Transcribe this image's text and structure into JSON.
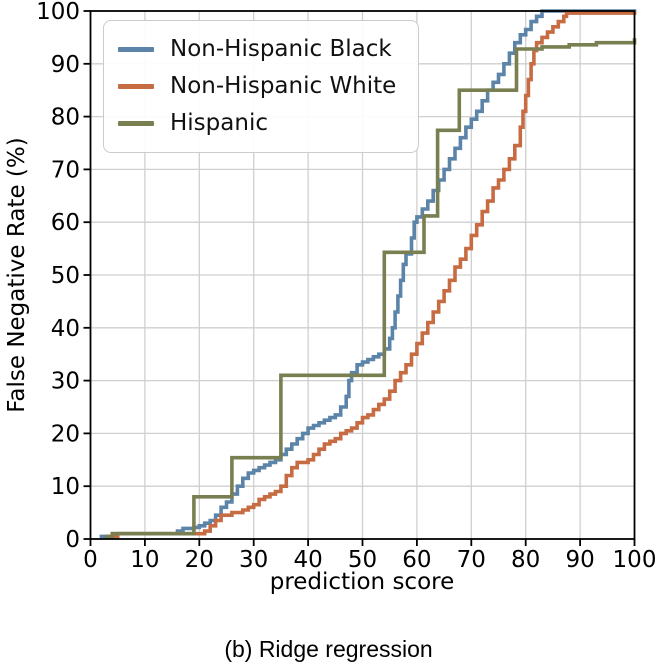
{
  "caption": "(b) Ridge regression",
  "chart_data": {
    "type": "line",
    "line_style": "steps-post",
    "title": "",
    "xlabel": "prediction score",
    "ylabel": "False Negative Rate (%)",
    "xlim": [
      0,
      100
    ],
    "ylim": [
      0,
      100
    ],
    "xticks": [
      0,
      10,
      20,
      30,
      40,
      50,
      60,
      70,
      80,
      90,
      100
    ],
    "yticks": [
      0,
      10,
      20,
      30,
      40,
      50,
      60,
      70,
      80,
      90,
      100
    ],
    "grid": true,
    "grid_color": "#cfcfcf",
    "legend_position": "upper-left",
    "series": [
      {
        "name": "Non-Hispanic Black",
        "color": "#5B84A8",
        "points": [
          [
            2,
            0.5
          ],
          [
            4,
            1
          ],
          [
            15,
            1
          ],
          [
            16,
            1.5
          ],
          [
            17,
            2
          ],
          [
            19,
            2.2
          ],
          [
            20,
            2.5
          ],
          [
            21,
            3
          ],
          [
            22,
            3.5
          ],
          [
            23,
            4.5
          ],
          [
            24,
            6
          ],
          [
            25,
            7
          ],
          [
            26,
            8.5
          ],
          [
            27,
            10
          ],
          [
            28,
            11.5
          ],
          [
            29,
            12.5
          ],
          [
            30,
            13
          ],
          [
            31,
            13.5
          ],
          [
            32,
            14
          ],
          [
            33,
            14.5
          ],
          [
            34,
            15
          ],
          [
            35,
            16
          ],
          [
            36,
            17
          ],
          [
            37,
            18
          ],
          [
            38,
            19
          ],
          [
            39,
            20
          ],
          [
            40,
            21
          ],
          [
            41,
            21.5
          ],
          [
            42,
            22
          ],
          [
            43,
            22.5
          ],
          [
            44,
            23
          ],
          [
            45,
            23.5
          ],
          [
            46,
            25
          ],
          [
            47,
            27
          ],
          [
            47.5,
            30
          ],
          [
            48,
            31.5
          ],
          [
            49,
            33
          ],
          [
            50,
            33.5
          ],
          [
            51,
            34
          ],
          [
            52,
            34.5
          ],
          [
            53,
            35
          ],
          [
            54,
            36
          ],
          [
            55,
            38
          ],
          [
            55.5,
            40
          ],
          [
            56,
            43
          ],
          [
            56.5,
            46
          ],
          [
            57,
            49
          ],
          [
            57.5,
            52
          ],
          [
            58,
            54
          ],
          [
            59,
            57
          ],
          [
            59.5,
            60
          ],
          [
            60,
            61
          ],
          [
            61,
            62.5
          ],
          [
            62,
            64
          ],
          [
            63,
            66
          ],
          [
            64,
            68
          ],
          [
            65,
            70
          ],
          [
            66,
            72
          ],
          [
            67,
            74
          ],
          [
            68,
            76
          ],
          [
            69,
            78
          ],
          [
            70,
            79.5
          ],
          [
            71,
            81
          ],
          [
            72,
            83
          ],
          [
            73,
            85
          ],
          [
            74,
            86.5
          ],
          [
            75,
            88
          ],
          [
            76,
            90
          ],
          [
            77,
            92
          ],
          [
            78,
            94
          ],
          [
            79,
            95.5
          ],
          [
            80,
            96.5
          ],
          [
            81,
            98
          ],
          [
            82,
            99
          ],
          [
            83,
            100
          ],
          [
            100,
            100
          ]
        ]
      },
      {
        "name": "Non-Hispanic White",
        "color": "#C76B43",
        "points": [
          [
            3,
            0.5
          ],
          [
            5,
            1
          ],
          [
            20,
            1
          ],
          [
            21,
            1.5
          ],
          [
            22,
            2.5
          ],
          [
            23,
            3.5
          ],
          [
            24,
            4.5
          ],
          [
            26,
            5
          ],
          [
            28,
            5.5
          ],
          [
            29,
            6
          ],
          [
            30,
            6.5
          ],
          [
            31,
            7.5
          ],
          [
            32,
            8
          ],
          [
            33,
            8.5
          ],
          [
            34,
            9
          ],
          [
            35,
            10
          ],
          [
            36,
            12
          ],
          [
            37,
            13.5
          ],
          [
            38,
            14.5
          ],
          [
            40,
            15
          ],
          [
            41,
            16
          ],
          [
            42,
            17
          ],
          [
            43,
            18
          ],
          [
            44,
            18.5
          ],
          [
            45,
            19
          ],
          [
            46,
            20
          ],
          [
            47,
            20.5
          ],
          [
            48,
            21
          ],
          [
            49,
            22
          ],
          [
            50,
            23
          ],
          [
            51,
            23.5
          ],
          [
            52,
            24.5
          ],
          [
            53,
            25.5
          ],
          [
            54,
            26.5
          ],
          [
            55,
            28
          ],
          [
            56,
            30
          ],
          [
            57,
            31.5
          ],
          [
            58,
            33
          ],
          [
            59,
            35
          ],
          [
            60,
            37
          ],
          [
            61,
            39
          ],
          [
            62,
            41
          ],
          [
            63,
            43
          ],
          [
            64,
            45
          ],
          [
            65,
            47
          ],
          [
            66,
            49
          ],
          [
            67,
            51.5
          ],
          [
            68,
            53
          ],
          [
            69,
            55
          ],
          [
            70,
            57.5
          ],
          [
            71,
            59.5
          ],
          [
            72,
            62
          ],
          [
            73,
            64
          ],
          [
            74,
            66.5
          ],
          [
            75,
            68
          ],
          [
            76,
            70
          ],
          [
            77,
            72
          ],
          [
            78,
            74.5
          ],
          [
            79,
            78
          ],
          [
            79.5,
            81
          ],
          [
            80,
            84
          ],
          [
            80.5,
            87
          ],
          [
            81,
            90
          ],
          [
            81.5,
            92.5
          ],
          [
            82,
            94
          ],
          [
            83,
            95
          ],
          [
            84,
            96
          ],
          [
            85,
            97
          ],
          [
            86,
            98
          ],
          [
            87,
            99
          ],
          [
            87.5,
            99.6
          ],
          [
            100,
            99.6
          ]
        ]
      },
      {
        "name": "Hispanic",
        "color": "#7A7F52",
        "points": [
          [
            3,
            0.5
          ],
          [
            4,
            1
          ],
          [
            19,
            8
          ],
          [
            26,
            15.4
          ],
          [
            35,
            31
          ],
          [
            54,
            54.3
          ],
          [
            61.3,
            61.2
          ],
          [
            63.8,
            77.4
          ],
          [
            67.8,
            85
          ],
          [
            78.3,
            92.8
          ],
          [
            83,
            93.2
          ],
          [
            88,
            93.6
          ],
          [
            93,
            94
          ],
          [
            100,
            94.5
          ]
        ]
      }
    ]
  }
}
